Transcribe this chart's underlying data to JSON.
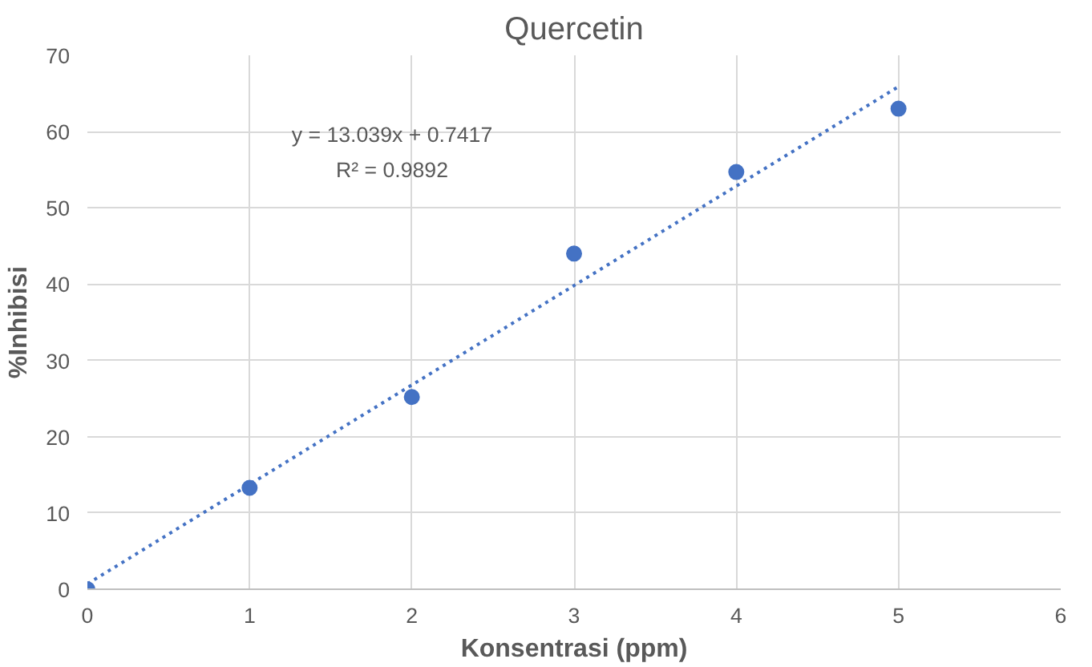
{
  "chart_data": {
    "type": "scatter",
    "title": "Quercetin",
    "xlabel": "Konsentrasi (ppm)",
    "ylabel": "%Inhibisi",
    "xlim": [
      0,
      6
    ],
    "ylim": [
      0,
      70
    ],
    "xticks": [
      0,
      1,
      2,
      3,
      4,
      5,
      6
    ],
    "yticks": [
      0,
      10,
      20,
      30,
      40,
      50,
      60,
      70
    ],
    "grid": true,
    "marker": "circle",
    "series": [
      {
        "color": "#4472c4",
        "x": [
          0,
          1,
          2,
          3,
          4,
          5
        ],
        "values": [
          0,
          13.3,
          25.2,
          44,
          54.7,
          63
        ]
      },
      {
        "type": "line",
        "color": "#4472c4",
        "line_style": "dotted",
        "marker": "none",
        "x": [
          0,
          5
        ],
        "values": [
          0.7,
          65.9
        ]
      }
    ],
    "annotations": [
      "y = 13.039x + 0.7417",
      "R² = 0.9892"
    ]
  }
}
